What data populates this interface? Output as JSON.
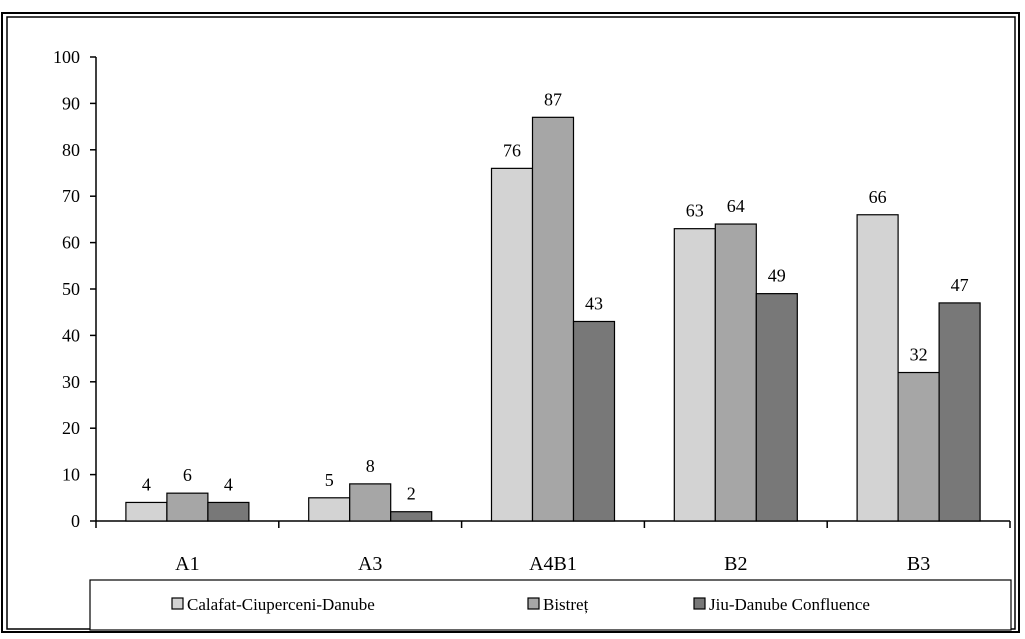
{
  "chart_data": {
    "type": "bar",
    "categories": [
      "A1",
      "A3",
      "A4B1",
      "B2",
      "B3"
    ],
    "series": [
      {
        "name": "Calafat-Ciuperceni-Danube",
        "values": [
          4,
          5,
          76,
          63,
          66
        ],
        "color": "#d3d3d3"
      },
      {
        "name": "Bistreț",
        "values": [
          6,
          8,
          87,
          64,
          32
        ],
        "color": "#a6a6a6"
      },
      {
        "name": "Jiu-Danube Confluence",
        "values": [
          4,
          2,
          43,
          49,
          47
        ],
        "color": "#787878"
      }
    ],
    "ylim": [
      0,
      100
    ],
    "yticks": [
      "0",
      "10",
      "20",
      "30",
      "40",
      "50",
      "60",
      "70",
      "80",
      "90",
      "100"
    ],
    "grid": false,
    "legend_position": "bottom",
    "data_labels": true
  }
}
